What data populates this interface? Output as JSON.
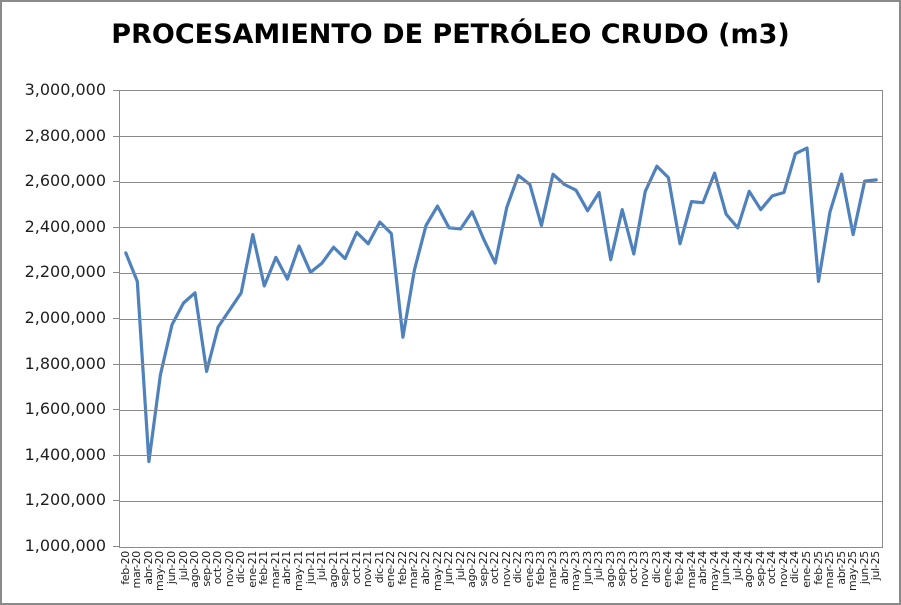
{
  "chart_data": {
    "type": "line",
    "title": "PROCESAMIENTO DE PETRÓLEO CRUDO (m3)",
    "xlabel": "",
    "ylabel": "",
    "ylim": [
      1000000,
      3000000
    ],
    "ytick_step": 200000,
    "grid": true,
    "legend": "none",
    "colors": {
      "line": "#4F81BD",
      "gridline": "#8A8A8A",
      "axis_text": "#1F1F1F",
      "frame_border": "#8A8A8A",
      "background": "#FFFFFF"
    },
    "ytick_labels": [
      "1,000,000",
      "1,200,000",
      "1,400,000",
      "1,600,000",
      "1,800,000",
      "2,000,000",
      "2,200,000",
      "2,400,000",
      "2,600,000",
      "2,800,000",
      "3,000,000"
    ],
    "categories": [
      "feb-20",
      "mar-20",
      "abr-20",
      "may-20",
      "jun-20",
      "jul-20",
      "ago-20",
      "sep-20",
      "oct-20",
      "nov-20",
      "dic-20",
      "ene-21",
      "feb-21",
      "mar-21",
      "abr-21",
      "may-21",
      "jun-21",
      "jul-21",
      "ago-21",
      "sep-21",
      "oct-21",
      "nov-21",
      "dic-21",
      "ene-22",
      "feb-22",
      "mar-22",
      "abr-22",
      "may-22",
      "jun-22",
      "jul-22",
      "ago-22",
      "sep-22",
      "oct-22",
      "nov-22",
      "dic-22",
      "ene-23",
      "feb-23",
      "mar-23",
      "abr-23",
      "may-23",
      "jun-23",
      "jul-23",
      "ago-23",
      "sep-23",
      "oct-23",
      "nov-23",
      "dic-23",
      "ene-24",
      "feb-24",
      "mar-24",
      "abr-24",
      "may-24",
      "jun-24",
      "jul-24",
      "ago-24",
      "sep-24",
      "oct-24",
      "nov-24",
      "dic-24",
      "ene-25",
      "feb-25",
      "mar-25",
      "abr-25",
      "may-25",
      "jun-25",
      "jul-25"
    ],
    "values": [
      2290000,
      2165000,
      1375000,
      1755000,
      1975000,
      2070000,
      2115000,
      1770000,
      1965000,
      2040000,
      2115000,
      2370000,
      2145000,
      2270000,
      2175000,
      2320000,
      2205000,
      2245000,
      2315000,
      2265000,
      2380000,
      2330000,
      2425000,
      2375000,
      1920000,
      2215000,
      2410000,
      2495000,
      2400000,
      2395000,
      2470000,
      2350000,
      2245000,
      2490000,
      2630000,
      2590000,
      2410000,
      2635000,
      2590000,
      2565000,
      2475000,
      2555000,
      2260000,
      2480000,
      2285000,
      2560000,
      2670000,
      2620000,
      2330000,
      2515000,
      2510000,
      2640000,
      2460000,
      2400000,
      2560000,
      2480000,
      2540000,
      2555000,
      2725000,
      2750000,
      2165000,
      2470000,
      2635000,
      2370000,
      2605000,
      2610000
    ]
  }
}
